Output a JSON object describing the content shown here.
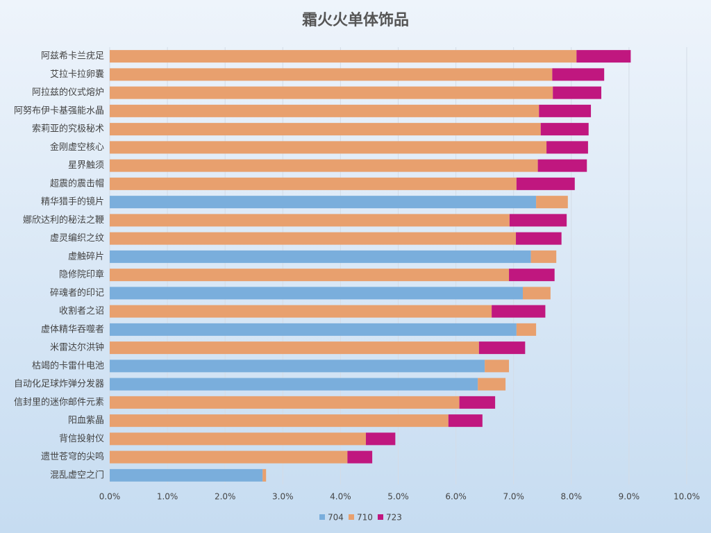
{
  "chart_data": {
    "type": "stacked-barh",
    "title": "霜火火单体饰品",
    "categories": [
      "阿兹希卡兰疣足",
      "艾拉卡拉卵囊",
      "阿拉兹的仪式熔炉",
      "阿努布伊卡基强能水晶",
      "索莉亚的究极秘术",
      "金刚虚空核心",
      "星界触须",
      "超震的震击帽",
      "精华猎手的镜片",
      "娜欣达利的秘法之鞭",
      "虚灵编织之纹",
      "虚触碎片",
      "隐修院印章",
      "碎魂者的印记",
      "收割者之诏",
      "虚体精华吞噬者",
      "米雷达尔洪钟",
      "枯竭的卡雷什电池",
      "自动化足球炸弹分发器",
      "信封里的迷你邮件元素",
      "阳血紫晶",
      "背信投射仪",
      "遗世苍穹的尖鸣",
      "混乱虚空之门"
    ],
    "series": [
      {
        "name": "704",
        "color": "#7aaedc",
        "values": [
          null,
          null,
          null,
          null,
          null,
          null,
          null,
          null,
          7.39,
          null,
          null,
          7.3,
          null,
          7.16,
          null,
          7.05,
          null,
          6.5,
          6.38,
          null,
          null,
          null,
          null,
          2.65
        ]
      },
      {
        "name": "710",
        "color": "#e8a06e",
        "values": [
          8.09,
          7.67,
          7.68,
          7.44,
          7.47,
          7.57,
          7.42,
          7.05,
          0.55,
          6.93,
          7.04,
          0.44,
          6.92,
          0.48,
          6.62,
          0.34,
          6.4,
          0.42,
          0.48,
          6.06,
          5.87,
          4.44,
          4.12,
          0.06
        ]
      },
      {
        "name": "723",
        "color": "#c0177f",
        "values": [
          0.94,
          0.9,
          0.84,
          0.9,
          0.83,
          0.72,
          0.85,
          1.01,
          null,
          0.99,
          0.79,
          null,
          0.79,
          null,
          0.93,
          null,
          0.8,
          null,
          null,
          0.62,
          0.59,
          0.51,
          0.43,
          null
        ]
      }
    ],
    "xlim": [
      0,
      10
    ],
    "xticks": [
      {
        "value": 0,
        "label": "0.0%"
      },
      {
        "value": 1,
        "label": "1.0%"
      },
      {
        "value": 2,
        "label": "2.0%"
      },
      {
        "value": 3,
        "label": "3.0%"
      },
      {
        "value": 4,
        "label": "4.0%"
      },
      {
        "value": 5,
        "label": "5.0%"
      },
      {
        "value": 6,
        "label": "6.0%"
      },
      {
        "value": 7,
        "label": "7.0%"
      },
      {
        "value": 8,
        "label": "8.0%"
      },
      {
        "value": 9,
        "label": "9.0%"
      },
      {
        "value": 10,
        "label": "10.0%"
      }
    ],
    "grid": true,
    "legend": "bottom"
  }
}
